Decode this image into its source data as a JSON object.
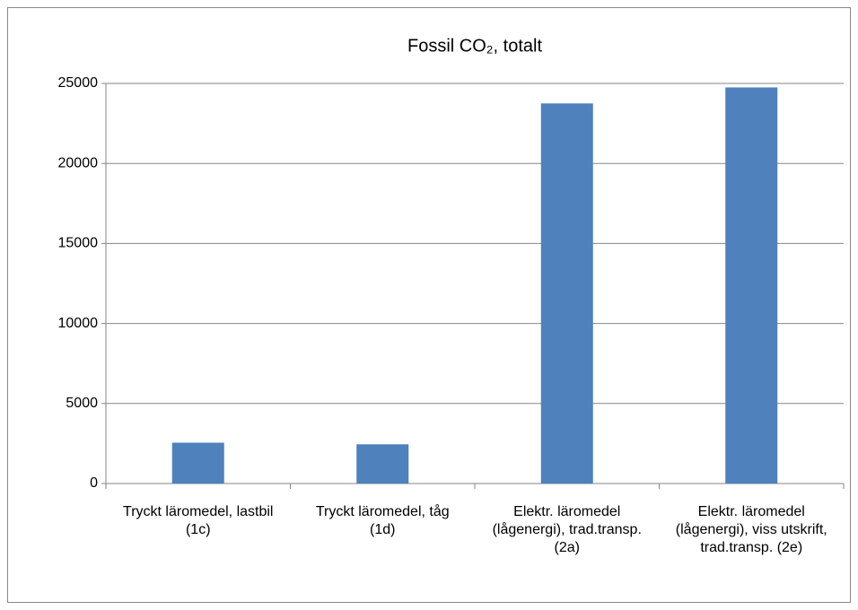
{
  "chart_data": {
    "type": "bar",
    "title": "Fossil CO₂, totalt",
    "categories": [
      "Tryckt läromedel, lastbil (1c)",
      "Tryckt läromedel, tåg (1d)",
      "Elektr. läromedel (lågenergi), trad.transp. (2a)",
      "Elektr. läromedel (lågenergi), viss utskrift, trad.transp. (2e)"
    ],
    "values": [
      2550,
      2450,
      23750,
      24750
    ],
    "color": "#4f81bd",
    "ylim": [
      0,
      25000
    ],
    "yticks": [
      0,
      5000,
      10000,
      15000,
      20000,
      25000
    ],
    "grid": true
  }
}
